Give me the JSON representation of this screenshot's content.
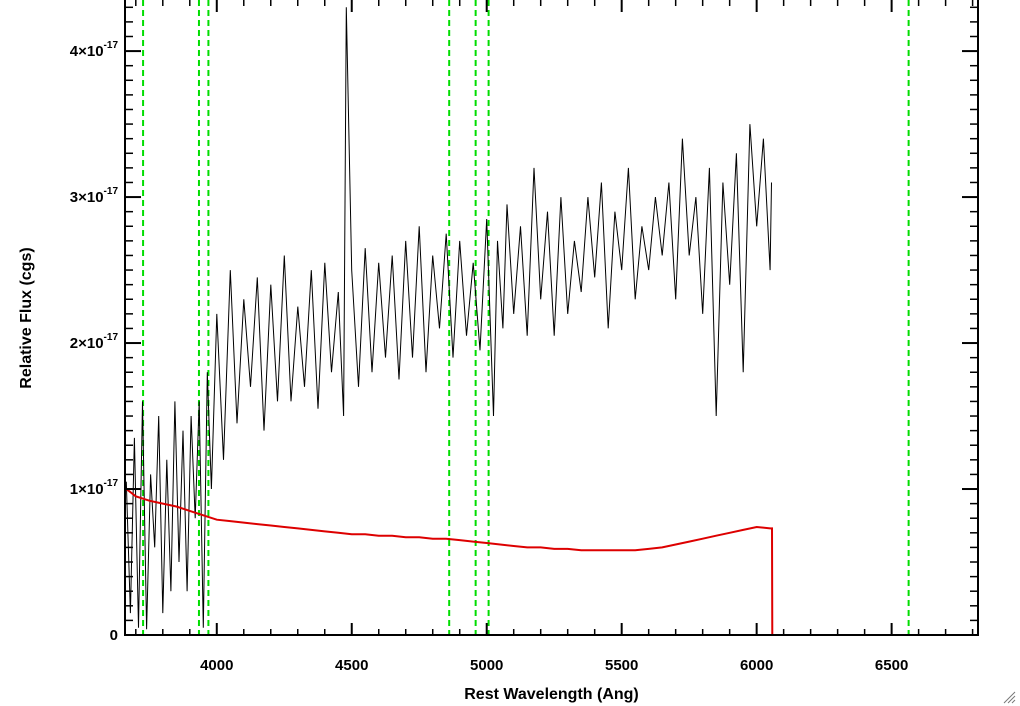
{
  "chart_data": {
    "type": "line",
    "title": "",
    "xlabel": "Rest Wavelength (Ang)",
    "ylabel": "Relative Flux (cgs)",
    "xlim": [
      3660,
      6820
    ],
    "ylim": [
      0,
      4.35e-17
    ],
    "x_ticks": [
      {
        "value": 4000,
        "label": "4000"
      },
      {
        "value": 4500,
        "label": "4500"
      },
      {
        "value": 5000,
        "label": "5000"
      },
      {
        "value": 5500,
        "label": "5500"
      },
      {
        "value": 6000,
        "label": "6000"
      },
      {
        "value": 6500,
        "label": "6500"
      }
    ],
    "y_ticks": [
      {
        "value": 0,
        "mantissa": "0",
        "exponent": ""
      },
      {
        "value": 1e-17,
        "mantissa": "1×10",
        "exponent": "-17"
      },
      {
        "value": 2e-17,
        "mantissa": "2×10",
        "exponent": "-17"
      },
      {
        "value": 3e-17,
        "mantissa": "3×10",
        "exponent": "-17"
      },
      {
        "value": 4e-17,
        "mantissa": "4×10",
        "exponent": "-17"
      }
    ],
    "reference_lines": {
      "color": "#00dd00",
      "style": "dashed",
      "x": [
        3727,
        3934,
        3969,
        4861,
        4959,
        5007,
        6563
      ]
    },
    "series": [
      {
        "color": "#000000",
        "x": [
          3665,
          3680,
          3695,
          3710,
          3725,
          3740,
          3755,
          3770,
          3785,
          3800,
          3815,
          3830,
          3845,
          3860,
          3875,
          3890,
          3905,
          3920,
          3935,
          3950,
          3965,
          3980,
          4000,
          4025,
          4050,
          4075,
          4100,
          4125,
          4150,
          4175,
          4200,
          4225,
          4250,
          4275,
          4300,
          4325,
          4350,
          4375,
          4400,
          4425,
          4450,
          4470,
          4480,
          4500,
          4525,
          4550,
          4575,
          4600,
          4625,
          4650,
          4675,
          4700,
          4725,
          4750,
          4775,
          4800,
          4825,
          4850,
          4875,
          4900,
          4925,
          4950,
          4975,
          5000,
          5025,
          5040,
          5060,
          5075,
          5100,
          5125,
          5150,
          5175,
          5200,
          5225,
          5250,
          5275,
          5300,
          5325,
          5350,
          5375,
          5400,
          5425,
          5450,
          5475,
          5500,
          5525,
          5550,
          5575,
          5600,
          5625,
          5650,
          5675,
          5700,
          5725,
          5750,
          5775,
          5800,
          5825,
          5850,
          5875,
          5900,
          5925,
          5950,
          5975,
          6000,
          6025,
          6050,
          6055
        ],
        "y": [
          1.05e-17,
          1.5e-18,
          1.35e-17,
          5e-19,
          1.6e-17,
          4e-19,
          1.1e-17,
          6e-18,
          1.5e-17,
          1.5e-18,
          1.2e-17,
          3e-18,
          1.6e-17,
          5e-18,
          1.4e-17,
          3e-18,
          1.5e-17,
          8e-18,
          1.6e-17,
          5e-19,
          1.8e-17,
          1e-17,
          2.2e-17,
          1.2e-17,
          2.5e-17,
          1.45e-17,
          2.3e-17,
          1.7e-17,
          2.45e-17,
          1.4e-17,
          2.4e-17,
          1.6e-17,
          2.6e-17,
          1.6e-17,
          2.25e-17,
          1.7e-17,
          2.5e-17,
          1.55e-17,
          2.55e-17,
          1.8e-17,
          2.35e-17,
          1.5e-17,
          4.3e-17,
          2.5e-17,
          1.7e-17,
          2.65e-17,
          1.8e-17,
          2.55e-17,
          1.9e-17,
          2.6e-17,
          1.75e-17,
          2.7e-17,
          1.9e-17,
          2.8e-17,
          1.8e-17,
          2.6e-17,
          2.1e-17,
          2.75e-17,
          1.9e-17,
          2.7e-17,
          2.05e-17,
          2.55e-17,
          1.95e-17,
          2.85e-17,
          1.5e-17,
          2.7e-17,
          2.1e-17,
          2.95e-17,
          2.2e-17,
          2.8e-17,
          2.05e-17,
          3.2e-17,
          2.3e-17,
          2.9e-17,
          2.05e-17,
          3e-17,
          2.2e-17,
          2.7e-17,
          2.35e-17,
          3e-17,
          2.45e-17,
          3.1e-17,
          2.1e-17,
          2.9e-17,
          2.5e-17,
          3.2e-17,
          2.3e-17,
          2.8e-17,
          2.5e-17,
          3e-17,
          2.6e-17,
          3.1e-17,
          2.3e-17,
          3.4e-17,
          2.6e-17,
          3e-17,
          2.2e-17,
          3.2e-17,
          1.5e-17,
          3.1e-17,
          2.4e-17,
          3.3e-17,
          1.8e-17,
          3.5e-17,
          2.8e-17,
          3.4e-17,
          2.5e-17,
          3.1e-17
        ]
      },
      {
        "color": "#dd0000",
        "x": [
          3665,
          3700,
          3750,
          3800,
          3850,
          3900,
          3950,
          4000,
          4050,
          4100,
          4150,
          4200,
          4250,
          4300,
          4350,
          4400,
          4450,
          4500,
          4550,
          4600,
          4650,
          4700,
          4750,
          4800,
          4850,
          4900,
          4950,
          5000,
          5050,
          5100,
          5150,
          5200,
          5250,
          5300,
          5350,
          5400,
          5450,
          5500,
          5550,
          5600,
          5650,
          5700,
          5750,
          5800,
          5850,
          5900,
          5950,
          6000,
          6050,
          6057,
          6058,
          6820
        ],
        "y": [
          1e-17,
          9.5e-18,
          9.2e-18,
          9e-18,
          8.8e-18,
          8.5e-18,
          8.2e-18,
          7.9e-18,
          7.8e-18,
          7.7e-18,
          7.6e-18,
          7.5e-18,
          7.4e-18,
          7.3e-18,
          7.2e-18,
          7.1e-18,
          7e-18,
          6.9e-18,
          6.9e-18,
          6.8e-18,
          6.8e-18,
          6.7e-18,
          6.7e-18,
          6.6e-18,
          6.6e-18,
          6.5e-18,
          6.4e-18,
          6.3e-18,
          6.2e-18,
          6.1e-18,
          6e-18,
          6e-18,
          5.9e-18,
          5.9e-18,
          5.8e-18,
          5.8e-18,
          5.8e-18,
          5.8e-18,
          5.8e-18,
          5.9e-18,
          6e-18,
          6.2e-18,
          6.4e-18,
          6.6e-18,
          6.8e-18,
          7e-18,
          7.2e-18,
          7.4e-18,
          7.3e-18,
          7.3e-18,
          0,
          0
        ]
      }
    ],
    "grid": false,
    "legend": "none"
  }
}
